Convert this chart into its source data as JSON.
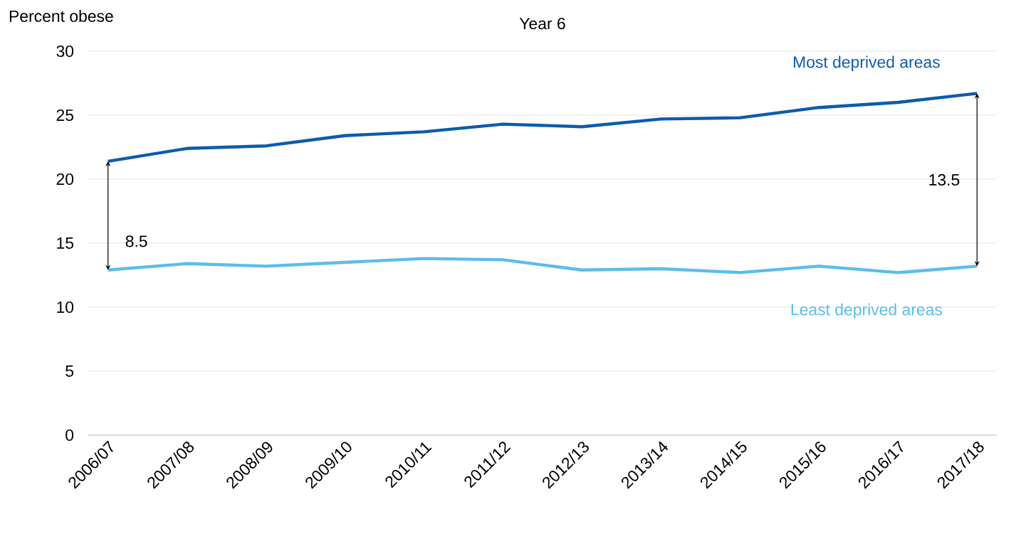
{
  "chart_data": {
    "type": "line",
    "title": "Year 6",
    "ylabel": "Percent obese",
    "categories": [
      "2006/07",
      "2007/08",
      "2008/09",
      "2009/10",
      "2010/11",
      "2011/12",
      "2012/13",
      "2013/14",
      "2014/15",
      "2015/16",
      "2016/17",
      "2017/18"
    ],
    "series": [
      {
        "name": "Most deprived areas",
        "color": "#0b5cad",
        "values": [
          21.4,
          22.4,
          22.6,
          23.4,
          23.7,
          24.3,
          24.1,
          24.7,
          24.8,
          25.6,
          26.0,
          26.7
        ]
      },
      {
        "name": "Least deprived areas",
        "color": "#5bbdeb",
        "values": [
          12.9,
          13.4,
          13.2,
          13.5,
          13.8,
          13.7,
          12.9,
          13.0,
          12.7,
          13.2,
          12.7,
          13.2
        ]
      }
    ],
    "ylim": [
      0,
      30
    ],
    "yticks": [
      0,
      5,
      10,
      15,
      20,
      25,
      30
    ],
    "grid": "y",
    "legend": false,
    "marker": "none",
    "line_style": "solid",
    "annotations": [
      "8.5",
      "13.5"
    ]
  }
}
